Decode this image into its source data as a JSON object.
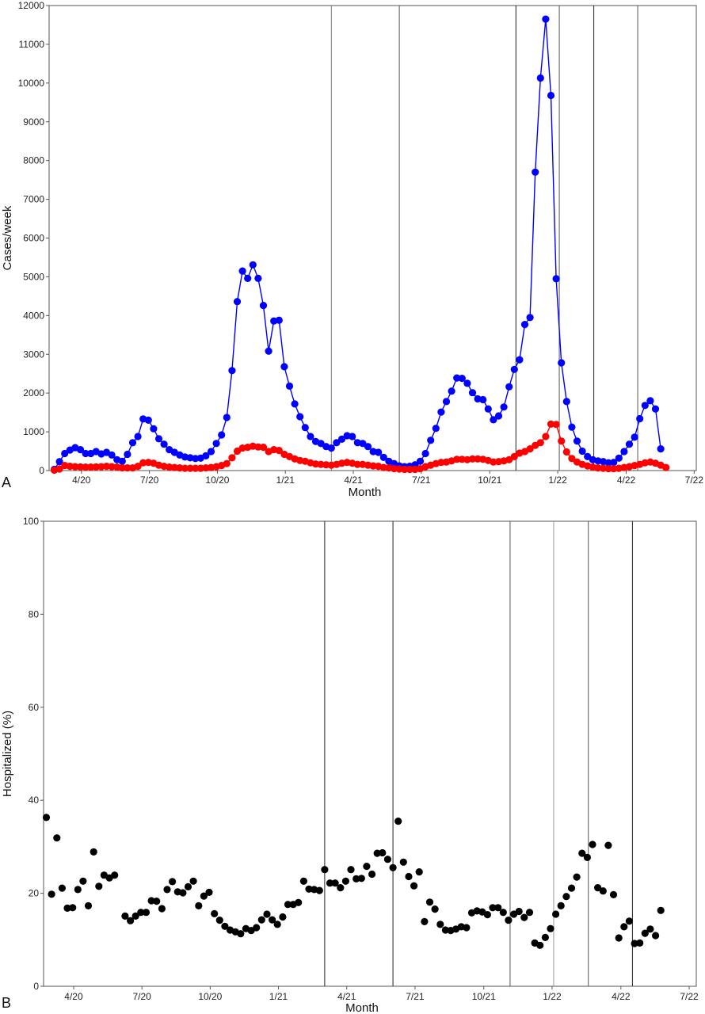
{
  "panel_a_label": "A",
  "panel_b_label": "B",
  "chart_data": [
    {
      "type": "line",
      "panel": "A",
      "xlabel": "Month",
      "ylabel": "Cases/week",
      "ylim": [
        0,
        12000
      ],
      "yticks": [
        0,
        1000,
        2000,
        3000,
        4000,
        5000,
        6000,
        7000,
        8000,
        9000,
        10000,
        11000,
        12000
      ],
      "xticks": [
        "4/20",
        "7/20",
        "10/20",
        "1/21",
        "4/21",
        "7/21",
        "10/21",
        "1/22",
        "4/22",
        "7/22"
      ],
      "grid": false,
      "vlines_week_index": [
        53,
        66,
        88.3,
        96.6,
        103.2,
        111.6
      ],
      "vline_colors": [
        "#7a7a7a",
        "#555555",
        "#222222",
        "#555555",
        "#222222",
        "#555555"
      ],
      "series": [
        {
          "color": "#0000ff",
          "values": [
            30,
            230,
            440,
            530,
            590,
            540,
            440,
            440,
            490,
            430,
            470,
            400,
            280,
            240,
            420,
            720,
            880,
            1330,
            1300,
            1080,
            820,
            680,
            540,
            470,
            400,
            350,
            330,
            310,
            320,
            380,
            490,
            700,
            920,
            1370,
            2580,
            4360,
            5150,
            4960,
            5310,
            4960,
            4260,
            3080,
            3860,
            3880,
            2680,
            2180,
            1720,
            1390,
            1110,
            880,
            750,
            700,
            620,
            580,
            720,
            810,
            900,
            880,
            720,
            700,
            620,
            490,
            470,
            340,
            240,
            180,
            120,
            100,
            110,
            150,
            240,
            440,
            780,
            1090,
            1510,
            1780,
            2050,
            2390,
            2380,
            2250,
            2010,
            1850,
            1830,
            1590,
            1310,
            1410,
            1640,
            2160,
            2610,
            2860,
            3770,
            3950,
            7700,
            10130,
            11650,
            9680,
            4950,
            2780,
            1780,
            1120,
            760,
            500,
            360,
            280,
            250,
            230,
            200,
            210,
            320,
            490,
            680,
            860,
            1340,
            1680,
            1800,
            1590,
            560
          ]
        },
        {
          "color": "#ff0000",
          "values": [
            10,
            40,
            130,
            110,
            100,
            95,
            90,
            90,
            95,
            100,
            110,
            100,
            90,
            70,
            70,
            70,
            110,
            200,
            210,
            190,
            140,
            110,
            90,
            80,
            70,
            60,
            60,
            60,
            60,
            70,
            80,
            100,
            130,
            180,
            330,
            500,
            580,
            600,
            630,
            610,
            600,
            490,
            540,
            520,
            420,
            360,
            300,
            260,
            240,
            200,
            170,
            160,
            150,
            140,
            160,
            190,
            210,
            190,
            160,
            160,
            140,
            120,
            110,
            80,
            70,
            50,
            40,
            30,
            30,
            30,
            50,
            100,
            140,
            180,
            210,
            220,
            250,
            290,
            290,
            280,
            300,
            300,
            290,
            260,
            220,
            230,
            250,
            280,
            360,
            450,
            490,
            560,
            650,
            720,
            880,
            1200,
            1190,
            760,
            480,
            310,
            220,
            160,
            120,
            90,
            70,
            60,
            50,
            50,
            60,
            80,
            100,
            130,
            160,
            200,
            220,
            190,
            140,
            80
          ]
        }
      ]
    },
    {
      "type": "scatter",
      "panel": "B",
      "xlabel": "Month",
      "ylabel": "Hospitalized (%)",
      "ylim": [
        0,
        100
      ],
      "yticks": [
        0,
        20,
        40,
        60,
        80,
        100
      ],
      "xticks": [
        "4/20",
        "7/20",
        "10/20",
        "1/21",
        "4/21",
        "7/21",
        "10/21",
        "1/22",
        "4/22",
        "7/22"
      ],
      "grid": false,
      "vlines_week_index": [
        53,
        66,
        88.3,
        96.6,
        103.2,
        111.6
      ],
      "vline_colors": [
        "#222222",
        "#222222",
        "#555555",
        "#999999",
        "#555555",
        "#222222"
      ],
      "series": [
        {
          "color": "#000000",
          "values": [
            36.3,
            19.8,
            31.9,
            21.1,
            16.8,
            16.9,
            20.8,
            22.6,
            17.3,
            28.9,
            21.5,
            23.9,
            23.3,
            23.9,
            null,
            15.1,
            14.1,
            15.1,
            15.9,
            15.9,
            18.4,
            18.3,
            16.7,
            20.8,
            22.5,
            20.3,
            20.1,
            21.4,
            22.6,
            17.3,
            19.4,
            20.2,
            15.6,
            14.2,
            12.9,
            12.1,
            11.7,
            11.3,
            12.4,
            12.0,
            12.6,
            14.3,
            15.5,
            14.3,
            13.3,
            14.9,
            17.6,
            17.6,
            18.0,
            22.6,
            20.9,
            20.8,
            20.6,
            25.1,
            22.2,
            22.2,
            21.2,
            22.6,
            25.1,
            23.1,
            23.2,
            25.8,
            24.1,
            28.6,
            28.7,
            27.3,
            25.5,
            35.5,
            26.7,
            23.6,
            21.6,
            24.6,
            13.9,
            18.1,
            16.6,
            13.3,
            12.1,
            12.0,
            12.3,
            12.8,
            12.6,
            15.8,
            16.2,
            16.0,
            15.4,
            16.9,
            16.9,
            15.9,
            14.2,
            15.5,
            16.1,
            14.8,
            15.9,
            9.3,
            8.8,
            10.5,
            12.4,
            15.5,
            17.3,
            19.3,
            21.1,
            23.5,
            28.6,
            27.7,
            30.5,
            21.2,
            20.5,
            30.3,
            19.7,
            10.4,
            12.8,
            14.0,
            9.2,
            9.3,
            11.4,
            12.3,
            10.9,
            16.3
          ]
        }
      ]
    }
  ]
}
